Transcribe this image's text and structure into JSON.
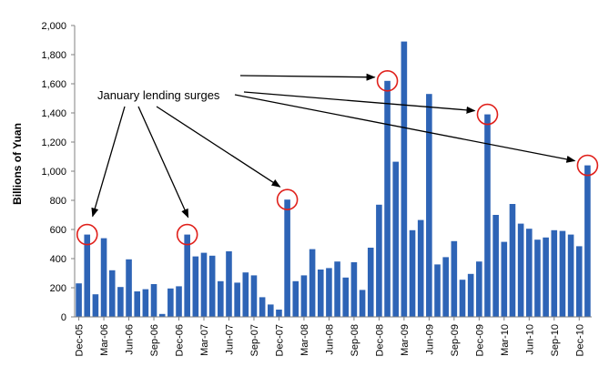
{
  "chart_data": {
    "type": "bar",
    "ylabel": "Billions of Yuan",
    "ylim": [
      0,
      2000
    ],
    "yticks": [
      "0",
      "200",
      "400",
      "600",
      "800",
      "1,000",
      "1,200",
      "1,400",
      "1,600",
      "1,800",
      "2,000"
    ],
    "ytick_values": [
      0,
      200,
      400,
      600,
      800,
      1000,
      1200,
      1400,
      1600,
      1800,
      2000
    ],
    "grid": false,
    "bar_color": "#2e64b6",
    "highlight_color": "#e0201b",
    "categories": [
      "Dec-05",
      "Jan-06",
      "Feb-06",
      "Mar-06",
      "Apr-06",
      "May-06",
      "Jun-06",
      "Jul-06",
      "Aug-06",
      "Sep-06",
      "Oct-06",
      "Nov-06",
      "Dec-06",
      "Jan-07",
      "Feb-07",
      "Mar-07",
      "Apr-07",
      "May-07",
      "Jun-07",
      "Jul-07",
      "Aug-07",
      "Sep-07",
      "Oct-07",
      "Nov-07",
      "Dec-07",
      "Jan-08",
      "Feb-08",
      "Mar-08",
      "Apr-08",
      "May-08",
      "Jun-08",
      "Jul-08",
      "Aug-08",
      "Sep-08",
      "Oct-08",
      "Nov-08",
      "Dec-08",
      "Jan-09",
      "Feb-09",
      "Mar-09",
      "Apr-09",
      "May-09",
      "Jun-09",
      "Jul-09",
      "Aug-09",
      "Sep-09",
      "Oct-09",
      "Nov-09",
      "Dec-09",
      "Jan-10",
      "Feb-10",
      "Mar-10",
      "Apr-10",
      "May-10",
      "Jun-10",
      "Jul-10",
      "Aug-10",
      "Sep-10",
      "Oct-10",
      "Nov-10",
      "Dec-10",
      "Jan-11"
    ],
    "x_tick_labels": [
      "Dec-05",
      "Mar-06",
      "Jun-06",
      "Sep-06",
      "Dec-06",
      "Mar-07",
      "Jun-07",
      "Sep-07",
      "Dec-07",
      "Mar-08",
      "Jun-08",
      "Sep-08",
      "Dec-08",
      "Mar-09",
      "Jun-09",
      "Sep-09",
      "Dec-09",
      "Mar-10",
      "Jun-10",
      "Sep-10",
      "Dec-10"
    ],
    "values": [
      230,
      565,
      155,
      540,
      320,
      205,
      395,
      175,
      190,
      225,
      20,
      195,
      210,
      565,
      415,
      440,
      420,
      245,
      450,
      235,
      305,
      285,
      135,
      85,
      50,
      805,
      245,
      285,
      465,
      325,
      335,
      380,
      270,
      375,
      185,
      475,
      770,
      1620,
      1065,
      1890,
      595,
      665,
      1530,
      360,
      410,
      520,
      255,
      295,
      380,
      1390,
      700,
      515,
      775,
      640,
      605,
      530,
      545,
      595,
      590,
      565,
      485,
      1040
    ],
    "highlighted": [
      "Jan-06",
      "Jan-07",
      "Jan-08",
      "Jan-09",
      "Jan-10",
      "Jan-11"
    ],
    "annotation": "January lending surges"
  }
}
